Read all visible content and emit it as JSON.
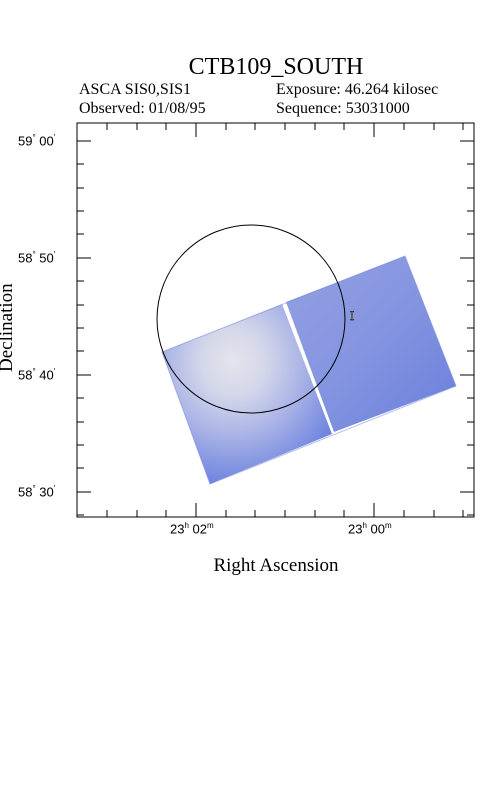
{
  "header": {
    "title": "CTB109_SOUTH",
    "instrument": "ASCA SIS0,SIS1",
    "exposure": "Exposure: 46.264 kilosec",
    "observed": "Observed: 01/08/95",
    "sequence": "Sequence: 53031000"
  },
  "axes": {
    "xlabel": "Right Ascension",
    "ylabel": "Declination",
    "x_ticks": [
      {
        "h": "23",
        "m": "02",
        "unit_h": "h",
        "unit_m": "m"
      },
      {
        "h": "23",
        "m": "00",
        "unit_h": "h",
        "unit_m": "m"
      }
    ],
    "y_ticks": [
      {
        "deg": "59",
        "min": "00",
        "unit_deg": "°",
        "unit_min": "′"
      },
      {
        "deg": "58",
        "min": "50",
        "unit_deg": "°",
        "unit_min": "′"
      },
      {
        "deg": "58",
        "min": "40",
        "unit_deg": "°",
        "unit_min": "′"
      },
      {
        "deg": "58",
        "min": "30",
        "unit_deg": "°",
        "unit_min": "′"
      }
    ]
  },
  "marker": {
    "label": "I"
  },
  "colors": {
    "frame": "#000000",
    "image_blue": "#5f76dc",
    "image_light": "#dcdde8",
    "background": "#ffffff"
  }
}
